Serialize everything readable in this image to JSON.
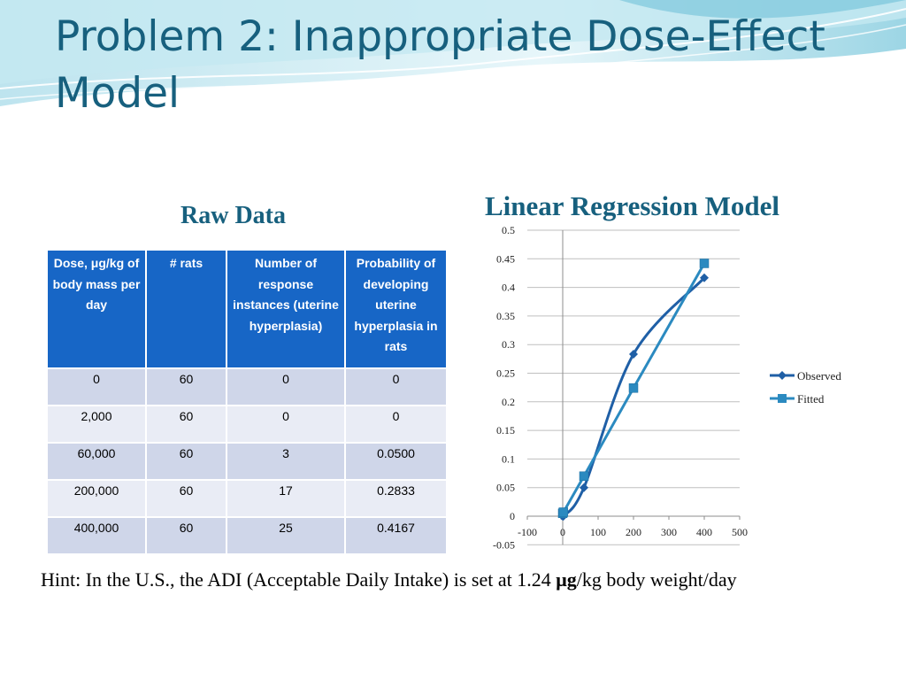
{
  "slide": {
    "title": "Problem 2: Inappropriate Dose-Effect Model",
    "raw_heading": "Raw Data",
    "chart_heading": "Linear Regression Model",
    "hint": {
      "before": "Hint: In the U.S., the ADI (Acceptable Daily Intake) is set at 1.24 ",
      "unit": "μg",
      "after": "/kg body weight/day"
    }
  },
  "table": {
    "headers": [
      "Dose, μg/kg of body mass per day",
      "# rats",
      "Number of response instances (uterine hyperplasia)",
      "Probability of developing uterine hyperplasia in rats"
    ],
    "rows": [
      [
        "0",
        "60",
        "0",
        "0"
      ],
      [
        "2,000",
        "60",
        "0",
        "0"
      ],
      [
        "60,000",
        "60",
        "3",
        "0.0500"
      ],
      [
        "200,000",
        "60",
        "17",
        "0.2833"
      ],
      [
        "400,000",
        "60",
        "25",
        "0.4167"
      ]
    ]
  },
  "chart_data": {
    "type": "line",
    "title": "",
    "xlabel": "",
    "ylabel": "",
    "xlim": [
      -100,
      500
    ],
    "ylim": [
      -0.05,
      0.5
    ],
    "x_ticks": [
      "-100",
      "0",
      "100",
      "200",
      "300",
      "400",
      "500"
    ],
    "y_ticks": [
      "0.5",
      "0.45",
      "0.4",
      "0.35",
      "0.3",
      "0.25",
      "0.2",
      "0.15",
      "0.1",
      "0.05",
      "0",
      "-0.05"
    ],
    "grid": true,
    "legend": "right",
    "series": [
      {
        "name": "Observed",
        "color": "#1f5fa6",
        "marker": "diamond",
        "smooth": true,
        "x": [
          0,
          2,
          60,
          200,
          400
        ],
        "y": [
          0,
          0,
          0.05,
          0.2833,
          0.4167
        ]
      },
      {
        "name": "Fitted",
        "color": "#2b8ac0",
        "marker": "square",
        "smooth": false,
        "x": [
          0,
          2,
          60,
          200,
          400
        ],
        "y": [
          0.005,
          0.007,
          0.07,
          0.224,
          0.442
        ]
      }
    ]
  }
}
